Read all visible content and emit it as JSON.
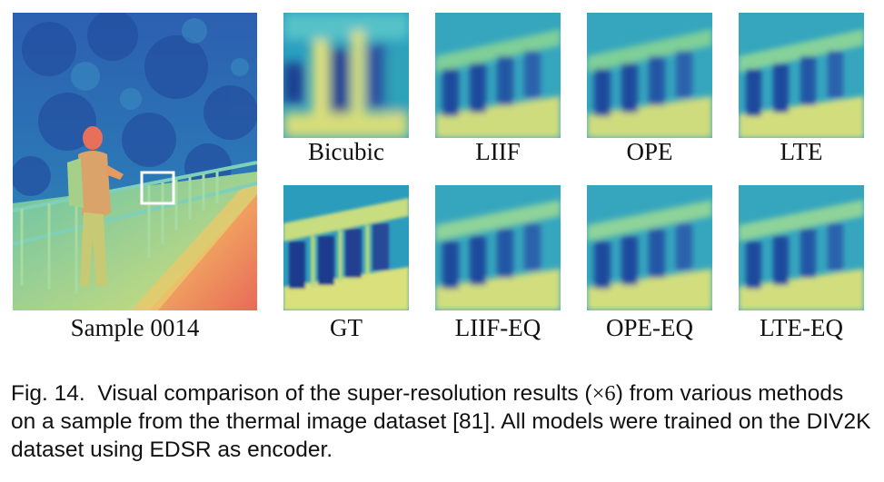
{
  "figure": {
    "main_label": "Sample 0014",
    "top_row": [
      "Bicubic",
      "LIIF",
      "OPE",
      "LTE"
    ],
    "bottom_row": [
      "GT",
      "LIIF-EQ",
      "OPE-EQ",
      "LTE-EQ"
    ]
  },
  "caption": {
    "prefix": "Fig. 14.",
    "text_before_math": "Visual comparison of the super-resolution results (",
    "math": "×6",
    "text_after_math": ") from various methods on a sample from the thermal image dataset [81]. All models were trained on the DIV2K dataset using EDSR as encoder."
  },
  "colors": {
    "deep": "#1f3d8f",
    "blue": "#2a6fc0",
    "teal": "#2fa3b8",
    "cyan": "#57c2c8",
    "green": "#9ed38a",
    "yellow": "#e6e37a",
    "orange": "#f0a060",
    "red": "#e8705a",
    "box": "#ffffff"
  }
}
